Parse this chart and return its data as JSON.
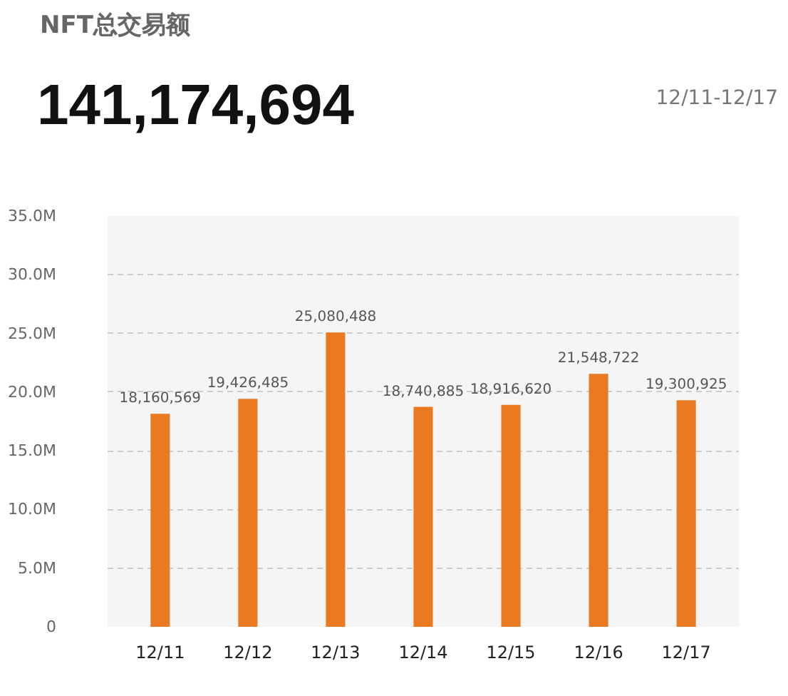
{
  "chart_data": {
    "type": "bar",
    "title": "NFT总交易额",
    "subtitle": "141,174,694",
    "annotations": [
      "12/11-12/17"
    ],
    "categories": [
      "12/11",
      "12/12",
      "12/13",
      "12/14",
      "12/15",
      "12/16",
      "12/17"
    ],
    "values": [
      18160569,
      19426485,
      25080488,
      18740885,
      18916620,
      21548722,
      19300925
    ],
    "value_labels": [
      "18,160,569",
      "19,426,485",
      "25,080,488",
      "18,740,885",
      "18,916,620",
      "21,548,722",
      "19,300,925"
    ],
    "color": "#ea7a22",
    "ylim": [
      0,
      35000000
    ],
    "yticks": [
      0,
      {
        "value": 5000000,
        "label": "5.0M"
      },
      {
        "value": 10000000,
        "label": "10.0M"
      },
      {
        "value": 15000000,
        "label": "15.0M"
      },
      {
        "value": 20000000,
        "label": "20.0M"
      },
      {
        "value": 25000000,
        "label": "25.0M"
      },
      {
        "value": 30000000,
        "label": "30.0M"
      },
      {
        "value": 35000000,
        "label": "35.0M"
      }
    ],
    "grid": "y"
  }
}
